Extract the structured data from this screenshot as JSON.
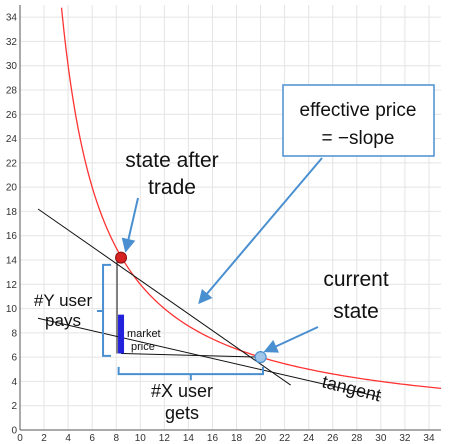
{
  "chart_data": {
    "type": "line",
    "title": "",
    "xlabel": "",
    "ylabel": "",
    "xlim": [
      0,
      35
    ],
    "ylim": [
      0,
      35
    ],
    "x_ticks": [
      0,
      2,
      4,
      6,
      8,
      10,
      12,
      14,
      16,
      18,
      20,
      22,
      24,
      26,
      28,
      30,
      32,
      34
    ],
    "y_ticks": [
      0,
      2,
      4,
      6,
      8,
      10,
      12,
      14,
      16,
      18,
      20,
      22,
      24,
      26,
      28,
      30,
      32,
      34
    ],
    "grid": true,
    "curve": {
      "kind": "hyperbola",
      "k": 120,
      "x_range": [
        3.45,
        35
      ],
      "color": "#ff3333"
    },
    "points": {
      "current_state": {
        "x": 20,
        "y": 6,
        "color": "#9fc5e8"
      },
      "state_after_trade": {
        "x": 8.4,
        "y": 14.2,
        "color": "#d62222"
      }
    },
    "lines": {
      "tangent": {
        "from": [
          1.5,
          9.2
        ],
        "to": [
          30,
          2.7
        ],
        "color": "#111111"
      },
      "effective_price": {
        "from": [
          1.5,
          18.2
        ],
        "to": [
          22.5,
          3.7
        ],
        "color": "#111111"
      },
      "market_price": {
        "from": [
          8.4,
          6.3
        ],
        "to": [
          20,
          6
        ],
        "color": "#111111"
      }
    },
    "market_price_bar": {
      "x": 8.4,
      "y_low": 6.3,
      "y_high": 9.5,
      "color": "#2222dd"
    },
    "annotations": {
      "state_after_trade": [
        "state after",
        "trade"
      ],
      "current_state": [
        "current",
        "state"
      ],
      "effective_price": [
        "effective price",
        "= −slope"
      ],
      "y_user_pays": [
        "#Y user",
        "pays"
      ],
      "x_user_gets": [
        "#X user",
        "gets"
      ],
      "market_price": [
        "market",
        "price"
      ],
      "tangent": "tangent"
    }
  }
}
